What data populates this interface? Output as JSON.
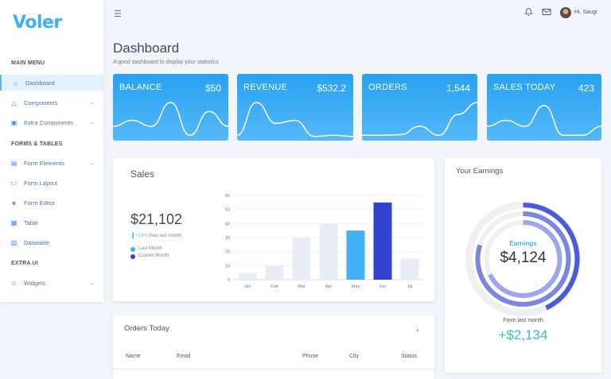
{
  "app": {
    "logo": "Voler",
    "greeting": "Hi, Saugi"
  },
  "header": {
    "icons": [
      "menu-icon",
      "bell-icon",
      "mail-icon"
    ]
  },
  "sidebar": {
    "sections": [
      "MAIN MENU",
      "FORMS & TABLES",
      "EXTRA UI"
    ],
    "items": [
      {
        "label": "Dashboard",
        "icon": "home-icon",
        "active": true
      },
      {
        "label": "Components",
        "icon": "triangle-icon",
        "chevron": true
      },
      {
        "label": "Extra Components",
        "icon": "briefcase-icon",
        "chevron": true
      },
      {
        "label": "Form Elements",
        "icon": "file-text-icon",
        "chevron": true
      },
      {
        "label": "Form Layout",
        "icon": "layout-icon"
      },
      {
        "label": "Form Editor",
        "icon": "layers-icon"
      },
      {
        "label": "Table",
        "icon": "grid-icon"
      },
      {
        "label": "Datatable",
        "icon": "file-plus-icon"
      },
      {
        "label": "Widgets",
        "icon": "user-icon",
        "chevron": true
      }
    ]
  },
  "page": {
    "title": "Dashboard",
    "subtitle": "A good dashboard to display your statistics"
  },
  "stats": [
    {
      "label": "BALANCE",
      "value": "$50",
      "spark": [
        20,
        30,
        20,
        60,
        5,
        45,
        20
      ]
    },
    {
      "label": "REVENUE",
      "value": "$532.2",
      "spark": [
        5,
        60,
        25,
        30,
        3,
        5,
        3
      ]
    },
    {
      "label": "ORDERS",
      "value": "1,544",
      "spark": [
        5,
        5,
        6,
        20,
        5,
        40,
        60
      ]
    },
    {
      "label": "SALES TODAY",
      "value": "423",
      "spark": [
        20,
        30,
        20,
        55,
        5,
        5,
        20
      ]
    }
  ],
  "sales": {
    "title": "Sales",
    "total": "$21,102",
    "change": "+19%",
    "change_text": "than last month",
    "legend": [
      "Last Month",
      "Current Month"
    ]
  },
  "chart_data": {
    "type": "bar",
    "categories": [
      "Jan",
      "Feb",
      "Mar",
      "Apr",
      "May",
      "Jun",
      "Jul"
    ],
    "values": [
      5,
      10,
      30,
      40,
      35,
      55,
      15
    ],
    "highlight": {
      "May": "Last Month",
      "Jun": "Current Month"
    },
    "ylim": [
      0,
      60
    ],
    "yticks": [
      0,
      10,
      20,
      30,
      40,
      50,
      60
    ],
    "grid": true,
    "colors": {
      "default": "#e9edf5",
      "last_month": "#41b0f5",
      "current_month": "#3442d0"
    }
  },
  "earnings": {
    "title": "Your Earnings",
    "label": "Earnings",
    "value": "$4,124",
    "from_label": "From last month",
    "delta": "+$2,134",
    "rings": [
      0.43,
      0.8,
      0.68
    ],
    "ring_colors": [
      "#4b5bd6",
      "#7a86e0",
      "#9ea7ea"
    ]
  },
  "orders": {
    "title": "Orders Today",
    "columns": [
      "Name",
      "Email",
      "Phone",
      "City",
      "Status"
    ]
  }
}
